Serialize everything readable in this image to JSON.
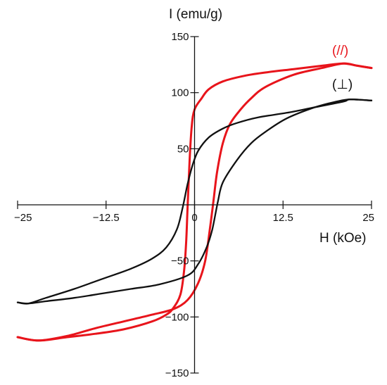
{
  "chart_data": {
    "type": "line",
    "title": "",
    "xlabel": "H (kOe)",
    "ylabel": "I (emu/g)",
    "xlim": [
      -25,
      25
    ],
    "ylim": [
      -150,
      150
    ],
    "x_ticks": [
      -25,
      -12.5,
      0,
      12.5,
      25
    ],
    "x_tick_labels": [
      "−25",
      "−12.5",
      "0",
      "12.5",
      "25"
    ],
    "y_ticks": [
      150,
      100,
      50,
      -50,
      -100,
      -150
    ],
    "y_tick_labels": [
      "150",
      "100",
      "50",
      "−50",
      "−100",
      "−150"
    ],
    "grid": false,
    "series": [
      {
        "name": "(//)",
        "color": "#e8141b",
        "upper_branch": [
          [
            -25,
            -118
          ],
          [
            -22,
            -121
          ],
          [
            -18,
            -118
          ],
          [
            -14,
            -115
          ],
          [
            -10,
            -111
          ],
          [
            -6,
            -104
          ],
          [
            -4,
            -98
          ],
          [
            -3,
            -92
          ],
          [
            -2,
            -80
          ],
          [
            -1.5,
            -60
          ],
          [
            -1.2,
            -35
          ],
          [
            -1.0,
            -5
          ],
          [
            -0.7,
            40
          ],
          [
            -0.4,
            70
          ],
          [
            0,
            85
          ],
          [
            1,
            95
          ],
          [
            2,
            103
          ],
          [
            4,
            110
          ],
          [
            7,
            115
          ],
          [
            10,
            118
          ],
          [
            14,
            121
          ],
          [
            18,
            124
          ],
          [
            21,
            126
          ],
          [
            23,
            124
          ],
          [
            25,
            122
          ]
        ],
        "lower_branch": [
          [
            -25,
            -118
          ],
          [
            -22,
            -121
          ],
          [
            -18,
            -117
          ],
          [
            -14,
            -110
          ],
          [
            -10,
            -104
          ],
          [
            -6,
            -98
          ],
          [
            -3,
            -93
          ],
          [
            -1,
            -85
          ],
          [
            0.5,
            -70
          ],
          [
            1.5,
            -50
          ],
          [
            2.2,
            -20
          ],
          [
            2.7,
            5
          ],
          [
            3.2,
            30
          ],
          [
            4,
            55
          ],
          [
            5,
            72
          ],
          [
            6.5,
            85
          ],
          [
            8,
            95
          ],
          [
            10,
            105
          ],
          [
            14,
            116
          ],
          [
            18,
            122
          ],
          [
            21,
            126
          ],
          [
            23,
            124
          ],
          [
            25,
            122
          ]
        ]
      },
      {
        "name": "(⊥)",
        "color": "#111111",
        "upper_branch": [
          [
            -25,
            -87
          ],
          [
            -23.5,
            -88
          ],
          [
            -21,
            -83
          ],
          [
            -17,
            -75
          ],
          [
            -13,
            -66
          ],
          [
            -9,
            -57
          ],
          [
            -6,
            -48
          ],
          [
            -4,
            -38
          ],
          [
            -2.5,
            -22
          ],
          [
            -1.7,
            -3
          ],
          [
            -1,
            18
          ],
          [
            -0.3,
            35
          ],
          [
            0.5,
            48
          ],
          [
            2,
            60
          ],
          [
            4,
            68
          ],
          [
            6,
            73
          ],
          [
            9,
            78
          ],
          [
            13,
            82
          ],
          [
            17,
            87
          ],
          [
            21,
            92
          ],
          [
            22,
            94
          ],
          [
            25,
            93
          ]
        ],
        "lower_branch": [
          [
            -25,
            -87
          ],
          [
            -23.5,
            -88
          ],
          [
            -21,
            -86
          ],
          [
            -17,
            -83
          ],
          [
            -13,
            -79
          ],
          [
            -9,
            -75
          ],
          [
            -5,
            -71
          ],
          [
            -1,
            -63
          ],
          [
            0.5,
            -53
          ],
          [
            1.7,
            -38
          ],
          [
            2.5,
            -22
          ],
          [
            3.3,
            3
          ],
          [
            4,
            20
          ],
          [
            6,
            40
          ],
          [
            8,
            55
          ],
          [
            10,
            65
          ],
          [
            13,
            77
          ],
          [
            17,
            87
          ],
          [
            20,
            92
          ],
          [
            22,
            94
          ],
          [
            25,
            93
          ]
        ]
      }
    ]
  }
}
